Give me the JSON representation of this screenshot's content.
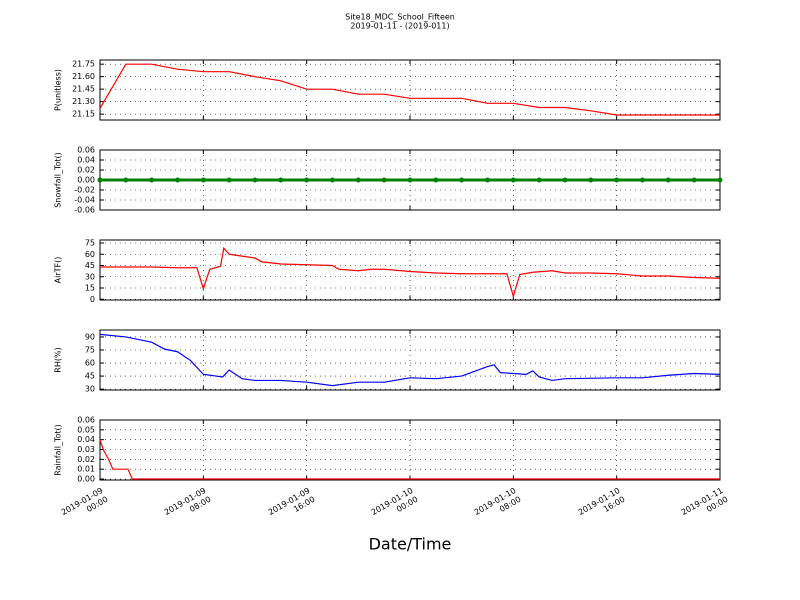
{
  "chart_data": [
    {
      "type": "line",
      "title": "Site18_MDC_School_Fifteen",
      "subtitle": "2019-01-11 - (2019-011)",
      "ylabel": "P(unitless)",
      "color": "#ff0000",
      "x": [
        "2019-01-09 00:00",
        "2019-01-09 02:00",
        "2019-01-09 04:00",
        "2019-01-09 06:00",
        "2019-01-09 08:00",
        "2019-01-09 10:00",
        "2019-01-09 12:00",
        "2019-01-09 14:00",
        "2019-01-09 16:00",
        "2019-01-09 18:00",
        "2019-01-09 20:00",
        "2019-01-09 22:00",
        "2019-01-10 00:00",
        "2019-01-10 02:00",
        "2019-01-10 04:00",
        "2019-01-10 06:00",
        "2019-01-10 08:00",
        "2019-01-10 10:00",
        "2019-01-10 12:00",
        "2019-01-10 14:00",
        "2019-01-10 16:00",
        "2019-01-10 18:00",
        "2019-01-10 20:00",
        "2019-01-10 22:00",
        "2019-01-11 00:00"
      ],
      "values": [
        21.22,
        21.75,
        21.75,
        21.69,
        21.66,
        21.66,
        21.6,
        21.55,
        21.45,
        21.45,
        21.39,
        21.39,
        21.34,
        21.34,
        21.34,
        21.28,
        21.28,
        21.23,
        21.23,
        21.19,
        21.14,
        21.14,
        21.14,
        21.14,
        21.14
      ],
      "xlim": [
        "2019-01-09 00:00",
        "2019-01-11 00:00"
      ],
      "xticks": [
        "2019-01-09 00:00",
        "2019-01-09 08:00",
        "2019-01-09 16:00",
        "2019-01-10 00:00",
        "2019-01-10 08:00",
        "2019-01-10 16:00",
        "2019-01-11 00:00"
      ],
      "ylim": [
        21.08,
        21.8
      ],
      "yticks": [
        21.15,
        {
          "value": 21.3,
          "label": "21.30"
        },
        21.45,
        {
          "value": 21.6,
          "label": "21.60"
        },
        21.75
      ],
      "grid": true
    },
    {
      "type": "line",
      "markers": true,
      "ylabel": "Snowfall_Tot()",
      "color": "#008000",
      "x": [
        "2019-01-09 00:00",
        "2019-01-09 02:00",
        "2019-01-09 04:00",
        "2019-01-09 06:00",
        "2019-01-09 08:00",
        "2019-01-09 10:00",
        "2019-01-09 12:00",
        "2019-01-09 14:00",
        "2019-01-09 16:00",
        "2019-01-09 18:00",
        "2019-01-09 20:00",
        "2019-01-09 22:00",
        "2019-01-10 00:00",
        "2019-01-10 02:00",
        "2019-01-10 04:00",
        "2019-01-10 06:00",
        "2019-01-10 08:00",
        "2019-01-10 10:00",
        "2019-01-10 12:00",
        "2019-01-10 14:00",
        "2019-01-10 16:00",
        "2019-01-10 18:00",
        "2019-01-10 20:00",
        "2019-01-10 22:00",
        "2019-01-11 00:00"
      ],
      "values": [
        0,
        0,
        0,
        0,
        0,
        0,
        0,
        0,
        0,
        0,
        0,
        0,
        0,
        0,
        0,
        0,
        0,
        0,
        0,
        0,
        0,
        0,
        0,
        0,
        0
      ],
      "xlim": [
        "2019-01-09 00:00",
        "2019-01-11 00:00"
      ],
      "xticks": [
        "2019-01-09 00:00",
        "2019-01-09 08:00",
        "2019-01-09 16:00",
        "2019-01-10 00:00",
        "2019-01-10 08:00",
        "2019-01-10 16:00",
        "2019-01-11 00:00"
      ],
      "ylim": [
        -0.06,
        0.06
      ],
      "yticks": [
        -0.06,
        -0.04,
        -0.02,
        {
          "value": 0,
          "label": "0.00"
        },
        0.02,
        0.04,
        0.06
      ],
      "grid": true
    },
    {
      "type": "line",
      "ylabel": "AirTF()",
      "color": "#ff0000",
      "x": [
        "2019-01-09 00:00",
        "2019-01-09 02:00",
        "2019-01-09 04:00",
        "2019-01-09 06:00",
        "2019-01-09 07:30",
        "2019-01-09 08:00",
        "2019-01-09 08:30",
        "2019-01-09 09:20",
        "2019-01-09 09:35",
        "2019-01-09 10:00",
        "2019-01-09 12:00",
        "2019-01-09 12:30",
        "2019-01-09 14:00",
        "2019-01-09 16:00",
        "2019-01-09 18:00",
        "2019-01-09 18:30",
        "2019-01-09 20:00",
        "2019-01-09 21:00",
        "2019-01-09 22:00",
        "2019-01-10 00:00",
        "2019-01-10 02:00",
        "2019-01-10 04:00",
        "2019-01-10 06:00",
        "2019-01-10 07:30",
        "2019-01-10 08:00",
        "2019-01-10 08:30",
        "2019-01-10 09:30",
        "2019-01-10 11:00",
        "2019-01-10 12:00",
        "2019-01-10 14:00",
        "2019-01-10 16:00",
        "2019-01-10 18:00",
        "2019-01-10 20:00",
        "2019-01-10 22:00",
        "2019-01-11 00:00"
      ],
      "values": [
        43,
        43,
        43,
        42,
        42,
        14,
        40,
        44,
        68,
        60,
        55,
        50,
        47,
        46,
        45,
        40,
        38,
        40,
        40,
        37,
        35,
        34,
        34,
        34,
        4,
        33,
        36,
        38,
        35,
        35,
        34,
        31,
        31,
        29,
        28
      ],
      "xlim": [
        "2019-01-09 00:00",
        "2019-01-11 00:00"
      ],
      "xticks": [
        "2019-01-09 00:00",
        "2019-01-09 08:00",
        "2019-01-09 16:00",
        "2019-01-10 00:00",
        "2019-01-10 08:00",
        "2019-01-10 16:00",
        "2019-01-11 00:00"
      ],
      "ylim": [
        -1,
        79
      ],
      "yticks": [
        0,
        15,
        30,
        45,
        60,
        75
      ],
      "grid": true
    },
    {
      "type": "line",
      "ylabel": "RH(%)",
      "color": "#0000ff",
      "x": [
        "2019-01-09 00:00",
        "2019-01-09 02:00",
        "2019-01-09 04:00",
        "2019-01-09 05:00",
        "2019-01-09 06:00",
        "2019-01-09 07:00",
        "2019-01-09 07:30",
        "2019-01-09 08:00",
        "2019-01-09 09:30",
        "2019-01-09 10:00",
        "2019-01-09 11:00",
        "2019-01-09 12:00",
        "2019-01-09 14:00",
        "2019-01-09 16:00",
        "2019-01-09 18:00",
        "2019-01-09 20:00",
        "2019-01-09 22:00",
        "2019-01-10 00:00",
        "2019-01-10 02:00",
        "2019-01-10 04:00",
        "2019-01-10 06:00",
        "2019-01-10 06:30",
        "2019-01-10 07:00",
        "2019-01-10 09:00",
        "2019-01-10 09:30",
        "2019-01-10 10:00",
        "2019-01-10 11:00",
        "2019-01-10 12:00",
        "2019-01-10 16:00",
        "2019-01-10 18:00",
        "2019-01-10 20:00",
        "2019-01-10 22:00",
        "2019-01-11 00:00"
      ],
      "values": [
        93,
        90,
        84,
        76,
        73,
        63,
        55,
        47,
        44,
        52,
        42,
        40,
        40,
        38,
        34,
        38,
        38,
        43,
        42,
        45,
        56,
        58,
        49,
        47,
        51,
        44,
        40,
        42,
        43,
        43,
        46,
        48,
        47
      ],
      "xlim": [
        "2019-01-09 00:00",
        "2019-01-11 00:00"
      ],
      "xticks": [
        "2019-01-09 00:00",
        "2019-01-09 08:00",
        "2019-01-09 16:00",
        "2019-01-10 00:00",
        "2019-01-10 08:00",
        "2019-01-10 16:00",
        "2019-01-11 00:00"
      ],
      "ylim": [
        29,
        98
      ],
      "yticks": [
        30,
        45,
        60,
        75,
        90
      ],
      "grid": true
    },
    {
      "type": "line",
      "ylabel": "Rainfall_Tot()",
      "xlabel": "Date/Time",
      "color": "#ff0000",
      "x": [
        "2019-01-09 00:00",
        "2019-01-09 00:15",
        "2019-01-09 00:40",
        "2019-01-09 01:00",
        "2019-01-09 02:10",
        "2019-01-09 02:30",
        "2019-01-11 00:00"
      ],
      "values": [
        0.04,
        0.03,
        0.02,
        0.01,
        0.01,
        0,
        0
      ],
      "xlim": [
        "2019-01-09 00:00",
        "2019-01-11 00:00"
      ],
      "xticks": [
        "2019-01-09 00:00",
        "2019-01-09 08:00",
        "2019-01-09 16:00",
        "2019-01-10 00:00",
        "2019-01-10 08:00",
        "2019-01-10 16:00",
        "2019-01-11 00:00"
      ],
      "ylim": [
        -0.001,
        0.06
      ],
      "yticks": [
        {
          "value": 0,
          "label": "0.00"
        },
        0.01,
        0.02,
        0.03,
        0.04,
        0.05,
        0.06
      ],
      "grid": true
    }
  ]
}
